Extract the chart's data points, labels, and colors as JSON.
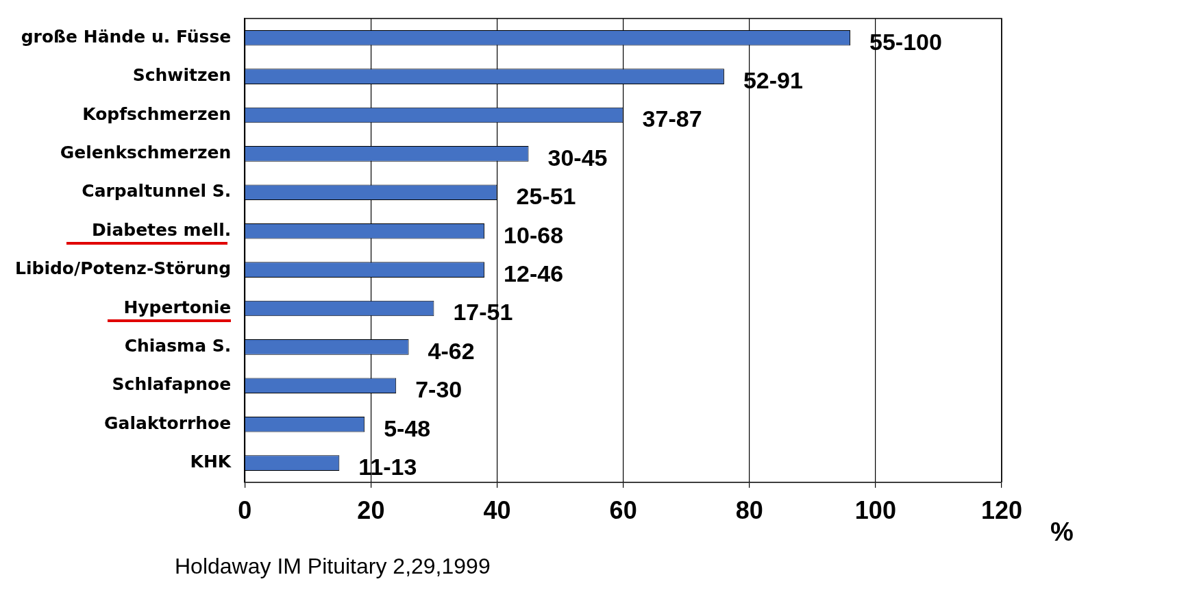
{
  "chart_data": {
    "type": "bar",
    "orientation": "horizontal",
    "categories": [
      "große Hände u. Füsse",
      "Schwitzen",
      "Kopfschmerzen",
      "Gelenkschmerzen",
      "Carpaltunnel S.",
      "Diabetes mell.",
      "Libido/Potenz-Störung",
      "Hypertonie",
      "Chiasma S.",
      "Schlafapnoe",
      "Galaktorrhoe",
      "KHK"
    ],
    "values": [
      96,
      76,
      60,
      45,
      40,
      38,
      38,
      30,
      26,
      24,
      19,
      15
    ],
    "value_labels": [
      "55-100",
      "52-91",
      "37-87",
      "30-45",
      "25-51",
      "10-68",
      "12-46",
      "17-51",
      "4-62",
      "7-30",
      "5-48",
      "11-13"
    ],
    "color": "#4472c4",
    "xlim": [
      0,
      120
    ],
    "xticks": [
      0,
      20,
      40,
      60,
      80,
      100,
      120
    ],
    "xlabel": "%",
    "grid": "x",
    "legend": false,
    "annotations": [
      "Holdaway IM Pituitary 2,29,1999"
    ]
  }
}
